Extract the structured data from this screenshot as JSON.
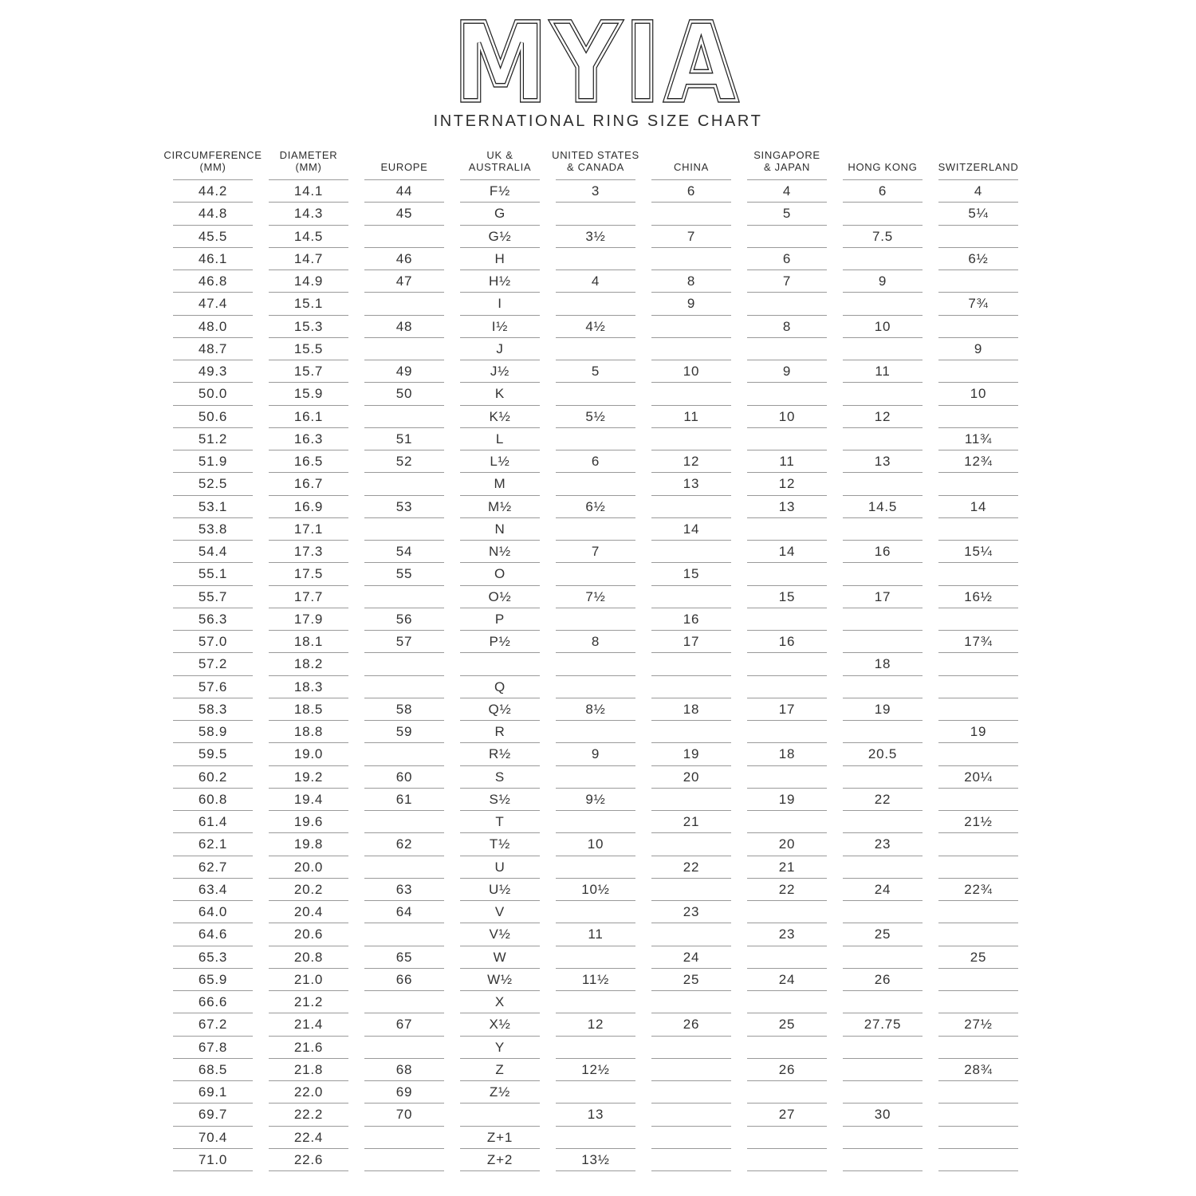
{
  "logo": {
    "text": "MYIA"
  },
  "title": "INTERNATIONAL RING SIZE CHART",
  "colors": {
    "text": "#333333",
    "rule_line": "#9a9a9a",
    "background": "#ffffff"
  },
  "table": {
    "columns": [
      {
        "key": "circumference",
        "label_lines": [
          "CIRCUMFERENCE",
          "(MM)"
        ]
      },
      {
        "key": "diameter",
        "label_lines": [
          "DIAMETER",
          "(MM)"
        ]
      },
      {
        "key": "europe",
        "label_lines": [
          "EUROPE"
        ]
      },
      {
        "key": "uk-australia",
        "label_lines": [
          "UK &",
          "AUSTRALIA"
        ]
      },
      {
        "key": "us-canada",
        "label_lines": [
          "UNITED STATES",
          "& CANADA"
        ]
      },
      {
        "key": "china",
        "label_lines": [
          "CHINA"
        ]
      },
      {
        "key": "singapore-japan",
        "label_lines": [
          "SINGAPORE",
          "& JAPAN"
        ]
      },
      {
        "key": "hong-kong",
        "label_lines": [
          "HONG KONG"
        ]
      },
      {
        "key": "switzerland",
        "label_lines": [
          "SWITZERLAND"
        ]
      }
    ],
    "rows": [
      [
        "44.2",
        "14.1",
        "44",
        "F½",
        "3",
        "6",
        "4",
        "6",
        "4"
      ],
      [
        "44.8",
        "14.3",
        "45",
        "G",
        "",
        "",
        "5",
        "",
        "5¼"
      ],
      [
        "45.5",
        "14.5",
        "",
        "G½",
        "3½",
        "7",
        "",
        "7.5",
        ""
      ],
      [
        "46.1",
        "14.7",
        "46",
        "H",
        "",
        "",
        "6",
        "",
        "6½"
      ],
      [
        "46.8",
        "14.9",
        "47",
        "H½",
        "4",
        "8",
        "7",
        "9",
        ""
      ],
      [
        "47.4",
        "15.1",
        "",
        "I",
        "",
        "9",
        "",
        "",
        "7¾"
      ],
      [
        "48.0",
        "15.3",
        "48",
        "I½",
        "4½",
        "",
        "8",
        "10",
        ""
      ],
      [
        "48.7",
        "15.5",
        "",
        "J",
        "",
        "",
        "",
        "",
        "9"
      ],
      [
        "49.3",
        "15.7",
        "49",
        "J½",
        "5",
        "10",
        "9",
        "11",
        ""
      ],
      [
        "50.0",
        "15.9",
        "50",
        "K",
        "",
        "",
        "",
        "",
        "10"
      ],
      [
        "50.6",
        "16.1",
        "",
        "K½",
        "5½",
        "11",
        "10",
        "12",
        ""
      ],
      [
        "51.2",
        "16.3",
        "51",
        "L",
        "",
        "",
        "",
        "",
        "11¾"
      ],
      [
        "51.9",
        "16.5",
        "52",
        "L½",
        "6",
        "12",
        "11",
        "13",
        "12¾"
      ],
      [
        "52.5",
        "16.7",
        "",
        "M",
        "",
        "13",
        "12",
        "",
        ""
      ],
      [
        "53.1",
        "16.9",
        "53",
        "M½",
        "6½",
        "",
        "13",
        "14.5",
        "14"
      ],
      [
        "53.8",
        "17.1",
        "",
        "N",
        "",
        "14",
        "",
        "",
        ""
      ],
      [
        "54.4",
        "17.3",
        "54",
        "N½",
        "7",
        "",
        "14",
        "16",
        "15¼"
      ],
      [
        "55.1",
        "17.5",
        "55",
        "O",
        "",
        "15",
        "",
        "",
        ""
      ],
      [
        "55.7",
        "17.7",
        "",
        "O½",
        "7½",
        "",
        "15",
        "17",
        "16½"
      ],
      [
        "56.3",
        "17.9",
        "56",
        "P",
        "",
        "16",
        "",
        "",
        ""
      ],
      [
        "57.0",
        "18.1",
        "57",
        "P½",
        "8",
        "17",
        "16",
        "",
        "17¾"
      ],
      [
        "57.2",
        "18.2",
        "",
        "",
        "",
        "",
        "",
        "18",
        ""
      ],
      [
        "57.6",
        "18.3",
        "",
        "Q",
        "",
        "",
        "",
        "",
        ""
      ],
      [
        "58.3",
        "18.5",
        "58",
        "Q½",
        "8½",
        "18",
        "17",
        "19",
        ""
      ],
      [
        "58.9",
        "18.8",
        "59",
        "R",
        "",
        "",
        "",
        "",
        "19"
      ],
      [
        "59.5",
        "19.0",
        "",
        "R½",
        "9",
        "19",
        "18",
        "20.5",
        ""
      ],
      [
        "60.2",
        "19.2",
        "60",
        "S",
        "",
        "20",
        "",
        "",
        "20¼"
      ],
      [
        "60.8",
        "19.4",
        "61",
        "S½",
        "9½",
        "",
        "19",
        "22",
        ""
      ],
      [
        "61.4",
        "19.6",
        "",
        "T",
        "",
        "21",
        "",
        "",
        "21½"
      ],
      [
        "62.1",
        "19.8",
        "62",
        "T½",
        "10",
        "",
        "20",
        "23",
        ""
      ],
      [
        "62.7",
        "20.0",
        "",
        "U",
        "",
        "22",
        "21",
        "",
        ""
      ],
      [
        "63.4",
        "20.2",
        "63",
        "U½",
        "10½",
        "",
        "22",
        "24",
        "22¾"
      ],
      [
        "64.0",
        "20.4",
        "64",
        "V",
        "",
        "23",
        "",
        "",
        ""
      ],
      [
        "64.6",
        "20.6",
        "",
        "V½",
        "11",
        "",
        "23",
        "25",
        ""
      ],
      [
        "65.3",
        "20.8",
        "65",
        "W",
        "",
        "24",
        "",
        "",
        "25"
      ],
      [
        "65.9",
        "21.0",
        "66",
        "W½",
        "11½",
        "25",
        "24",
        "26",
        ""
      ],
      [
        "66.6",
        "21.2",
        "",
        "X",
        "",
        "",
        "",
        "",
        ""
      ],
      [
        "67.2",
        "21.4",
        "67",
        "X½",
        "12",
        "26",
        "25",
        "27.75",
        "27½"
      ],
      [
        "67.8",
        "21.6",
        "",
        "Y",
        "",
        "",
        "",
        "",
        ""
      ],
      [
        "68.5",
        "21.8",
        "68",
        "Z",
        "12½",
        "",
        "26",
        "",
        "28¾"
      ],
      [
        "69.1",
        "22.0",
        "69",
        "Z½",
        "",
        "",
        "",
        "",
        ""
      ],
      [
        "69.7",
        "22.2",
        "70",
        "",
        "13",
        "",
        "27",
        "30",
        ""
      ],
      [
        "70.4",
        "22.4",
        "",
        "Z+1",
        "",
        "",
        "",
        "",
        ""
      ],
      [
        "71.0",
        "22.6",
        "",
        "Z+2",
        "13½",
        "",
        "",
        "",
        ""
      ]
    ]
  }
}
